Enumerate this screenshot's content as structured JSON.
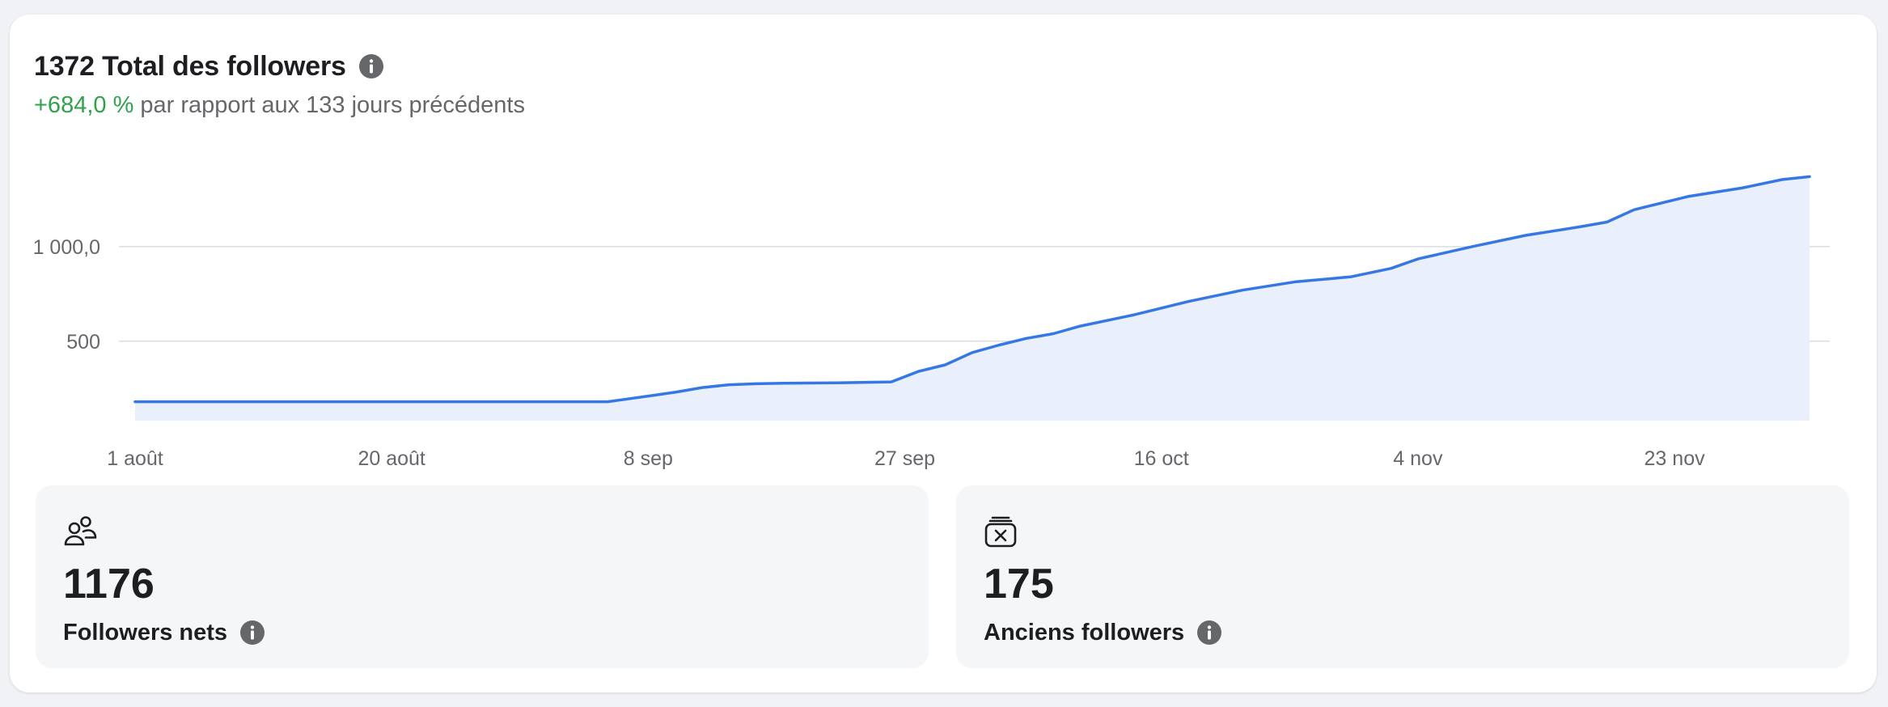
{
  "header": {
    "title": "1372 Total des followers",
    "change": "+684,0 %",
    "comparison": "par rapport aux 133 jours précédents",
    "info_icon": "info-icon"
  },
  "colors": {
    "line": "#3578e5",
    "area": "#e9effb",
    "grid": "#dadde1",
    "positive": "#31a24c",
    "muted_text": "#65676b",
    "icon_gray": "#65676b"
  },
  "chart_data": {
    "type": "area",
    "x_start": "1 août",
    "x_end": "3 déc",
    "xtick_labels": [
      "1 août",
      "20 août",
      "8 sep",
      "27 sep",
      "16 oct",
      "4 nov",
      "23 nov"
    ],
    "ytick_labels": [
      "500",
      "1 000,0"
    ],
    "ytick_values": [
      500,
      1000
    ],
    "ylim": [
      80,
      1500
    ],
    "grid": "horizontal",
    "series": [
      {
        "x": [
          "1 août",
          "8 août",
          "15 août",
          "22 août",
          "29 août",
          "5 sep",
          "6 sep",
          "8 sep",
          "10 sep",
          "12 sep",
          "14 sep",
          "16 sep",
          "18 sep",
          "22 sep",
          "26 sep",
          "28 sep",
          "30 sep",
          "2 oct",
          "4 oct",
          "6 oct",
          "8 oct",
          "10 oct",
          "14 oct",
          "18 oct",
          "22 oct",
          "26 oct",
          "30 oct",
          "2 nov",
          "4 nov",
          "8 nov",
          "12 nov",
          "16 nov",
          "18 nov",
          "20 nov",
          "24 nov",
          "28 nov",
          "1 déc",
          "3 déc"
        ],
        "values": [
          180,
          180,
          180,
          180,
          180,
          180,
          190,
          210,
          230,
          255,
          270,
          275,
          278,
          280,
          285,
          340,
          375,
          440,
          480,
          515,
          540,
          580,
          640,
          710,
          770,
          815,
          840,
          885,
          935,
          1000,
          1060,
          1105,
          1130,
          1195,
          1265,
          1310,
          1355,
          1370
        ]
      }
    ]
  },
  "stats": [
    {
      "icon": "people-icon",
      "value": "1176",
      "label": "Followers nets"
    },
    {
      "icon": "removed-box-icon",
      "value": "175",
      "label": "Anciens followers"
    }
  ]
}
